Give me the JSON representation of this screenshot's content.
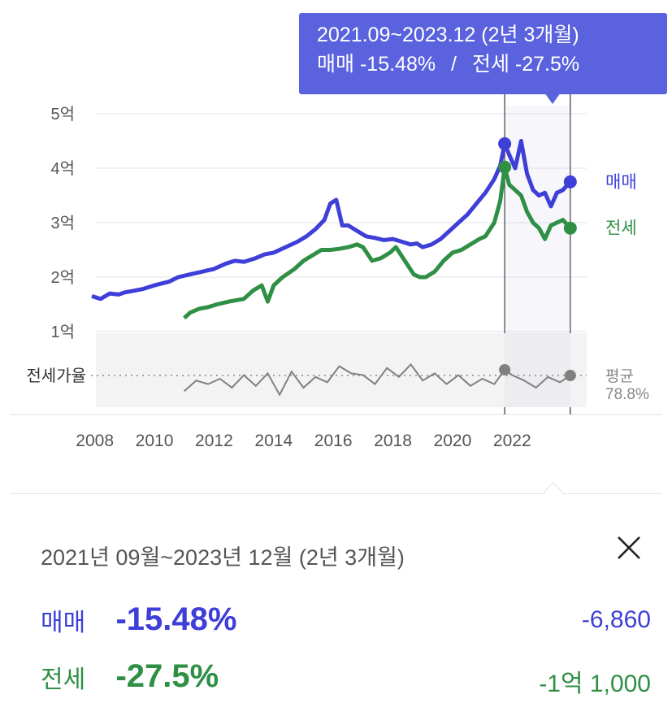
{
  "tooltip": {
    "period": "2021.09~2023.12 (2년 3개월)",
    "sale_label": "매매",
    "sale_pct": "-15.48%",
    "separator": "/",
    "jeonse_label": "전세",
    "jeonse_pct": "-27.5%"
  },
  "chart_data": {
    "type": "line",
    "title": "",
    "y_unit": "억",
    "y_ticks": [
      "5억",
      "4억",
      "3억",
      "2억",
      "1억"
    ],
    "x_ticks": [
      "2008",
      "2010",
      "2012",
      "2014",
      "2016",
      "2018",
      "2020",
      "2022"
    ],
    "ylim": [
      1,
      5
    ],
    "xlim": [
      2007.9,
      2024.5
    ],
    "grid": true,
    "selected_range": [
      "2021.09",
      "2023.12"
    ],
    "series": [
      {
        "name": "매매",
        "color": "#3e3ed8",
        "x": [
          2007.9,
          2008.2,
          2008.5,
          2008.8,
          2009.0,
          2009.3,
          2009.6,
          2010.0,
          2010.5,
          2010.8,
          2011.2,
          2011.6,
          2012.0,
          2012.4,
          2012.7,
          2013.0,
          2013.4,
          2013.7,
          2014.0,
          2014.4,
          2014.8,
          2015.1,
          2015.4,
          2015.7,
          2015.9,
          2016.1,
          2016.3,
          2016.5,
          2016.8,
          2017.1,
          2017.4,
          2017.7,
          2018.0,
          2018.3,
          2018.6,
          2018.8,
          2019.0,
          2019.3,
          2019.6,
          2019.9,
          2020.2,
          2020.5,
          2020.8,
          2021.1,
          2021.4,
          2021.6,
          2021.75,
          2021.9,
          2022.1,
          2022.3,
          2022.5,
          2022.7,
          2022.9,
          2023.1,
          2023.3,
          2023.5,
          2023.7,
          2023.95
        ],
        "values": [
          1.65,
          1.6,
          1.7,
          1.68,
          1.72,
          1.75,
          1.78,
          1.85,
          1.92,
          2.0,
          2.05,
          2.1,
          2.15,
          2.25,
          2.3,
          2.28,
          2.35,
          2.42,
          2.45,
          2.55,
          2.65,
          2.75,
          2.88,
          3.05,
          3.35,
          3.42,
          2.95,
          2.95,
          2.85,
          2.75,
          2.72,
          2.68,
          2.7,
          2.65,
          2.6,
          2.62,
          2.55,
          2.6,
          2.7,
          2.85,
          3.0,
          3.15,
          3.35,
          3.55,
          3.8,
          4.05,
          4.45,
          4.25,
          4.0,
          4.5,
          3.9,
          3.6,
          3.5,
          3.55,
          3.3,
          3.55,
          3.6,
          3.75
        ]
      },
      {
        "name": "전세",
        "color": "#2e8f45",
        "x": [
          2011.0,
          2011.2,
          2011.5,
          2011.8,
          2012.1,
          2012.5,
          2012.8,
          2013.0,
          2013.3,
          2013.6,
          2013.8,
          2014.0,
          2014.3,
          2014.7,
          2015.0,
          2015.3,
          2015.6,
          2015.9,
          2016.2,
          2016.5,
          2016.8,
          2017.0,
          2017.3,
          2017.6,
          2017.9,
          2018.1,
          2018.4,
          2018.7,
          2018.9,
          2019.1,
          2019.4,
          2019.7,
          2020.0,
          2020.3,
          2020.6,
          2020.9,
          2021.1,
          2021.4,
          2021.6,
          2021.75,
          2021.9,
          2022.1,
          2022.3,
          2022.5,
          2022.7,
          2022.9,
          2023.1,
          2023.3,
          2023.5,
          2023.7,
          2023.95
        ],
        "values": [
          1.25,
          1.35,
          1.42,
          1.45,
          1.5,
          1.55,
          1.58,
          1.6,
          1.75,
          1.85,
          1.55,
          1.85,
          2.0,
          2.15,
          2.3,
          2.4,
          2.5,
          2.5,
          2.52,
          2.55,
          2.6,
          2.55,
          2.3,
          2.35,
          2.45,
          2.55,
          2.3,
          2.05,
          2.0,
          2.0,
          2.1,
          2.3,
          2.45,
          2.5,
          2.6,
          2.7,
          2.75,
          3.0,
          3.4,
          4.02,
          3.7,
          3.6,
          3.5,
          3.2,
          3.0,
          2.9,
          2.7,
          2.95,
          3.0,
          3.05,
          2.9
        ]
      },
      {
        "name": "전세가율",
        "color": "#808080",
        "x": [
          2011.0,
          2011.4,
          2011.8,
          2012.2,
          2012.6,
          2013.0,
          2013.4,
          2013.8,
          2014.2,
          2014.6,
          2015.0,
          2015.4,
          2015.8,
          2016.2,
          2016.6,
          2017.0,
          2017.4,
          2017.8,
          2018.2,
          2018.6,
          2019.0,
          2019.4,
          2019.8,
          2020.2,
          2020.6,
          2021.0,
          2021.4,
          2021.75,
          2022.0,
          2022.4,
          2022.8,
          2023.2,
          2023.6,
          2023.95
        ],
        "values": [
          70,
          76,
          74,
          77,
          72,
          79,
          73,
          80,
          68,
          81,
          72,
          78,
          75,
          84,
          80,
          79,
          74,
          83,
          78,
          85,
          76,
          80,
          74,
          79,
          73,
          77,
          74,
          82,
          79,
          76,
          72,
          78,
          75,
          78.8
        ]
      }
    ],
    "band_label": "평균",
    "band_value": "78.8%",
    "ratio_label": "전세가율"
  },
  "series_labels": {
    "sale": "매매",
    "jeonse": "전세"
  },
  "panel": {
    "period": "2021년 09월~2023년 12월 (2년 3개월)",
    "sale_label": "매매",
    "sale_pct": "-15.48%",
    "sale_diff": "-6,860",
    "jeonse_label": "전세",
    "jeonse_pct": "-27.5%",
    "jeonse_diff": "-1억 1,000"
  }
}
